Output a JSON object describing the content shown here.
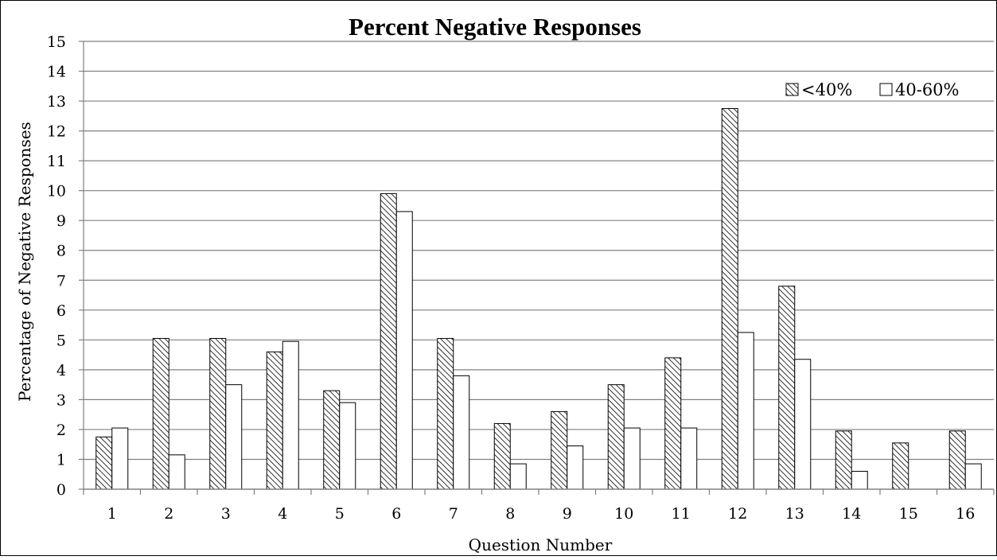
{
  "chart_data": {
    "type": "bar",
    "title": "Percent Negative Responses",
    "xlabel": "Question Number",
    "ylabel": "Percentage of Negative Responses",
    "ylim": [
      0,
      15
    ],
    "yticks": [
      "0",
      "1",
      "2",
      "3",
      "4",
      "5",
      "6",
      "7",
      "8",
      "9",
      "10",
      "11",
      "12",
      "13",
      "14",
      "15"
    ],
    "grid": true,
    "legend_position": "top-right",
    "categories": [
      "1",
      "2",
      "3",
      "4",
      "5",
      "6",
      "7",
      "8",
      "9",
      "10",
      "11",
      "12",
      "13",
      "14",
      "15",
      "16"
    ],
    "series": [
      {
        "name": "<40%",
        "pattern": "diagonal-hatch",
        "values": [
          1.75,
          5.05,
          5.05,
          4.6,
          3.3,
          9.9,
          5.05,
          2.2,
          2.6,
          3.5,
          4.4,
          12.75,
          6.8,
          1.95,
          1.55,
          1.95
        ]
      },
      {
        "name": "40-60%",
        "pattern": "solid-white",
        "values": [
          2.05,
          1.15,
          3.5,
          4.95,
          2.9,
          9.3,
          3.8,
          0.85,
          1.45,
          2.05,
          2.05,
          5.25,
          4.35,
          0.6,
          0,
          0.85
        ]
      }
    ],
    "colors": {
      "border": "#000000",
      "grid": "#808080",
      "fill": "#ffffff"
    }
  }
}
